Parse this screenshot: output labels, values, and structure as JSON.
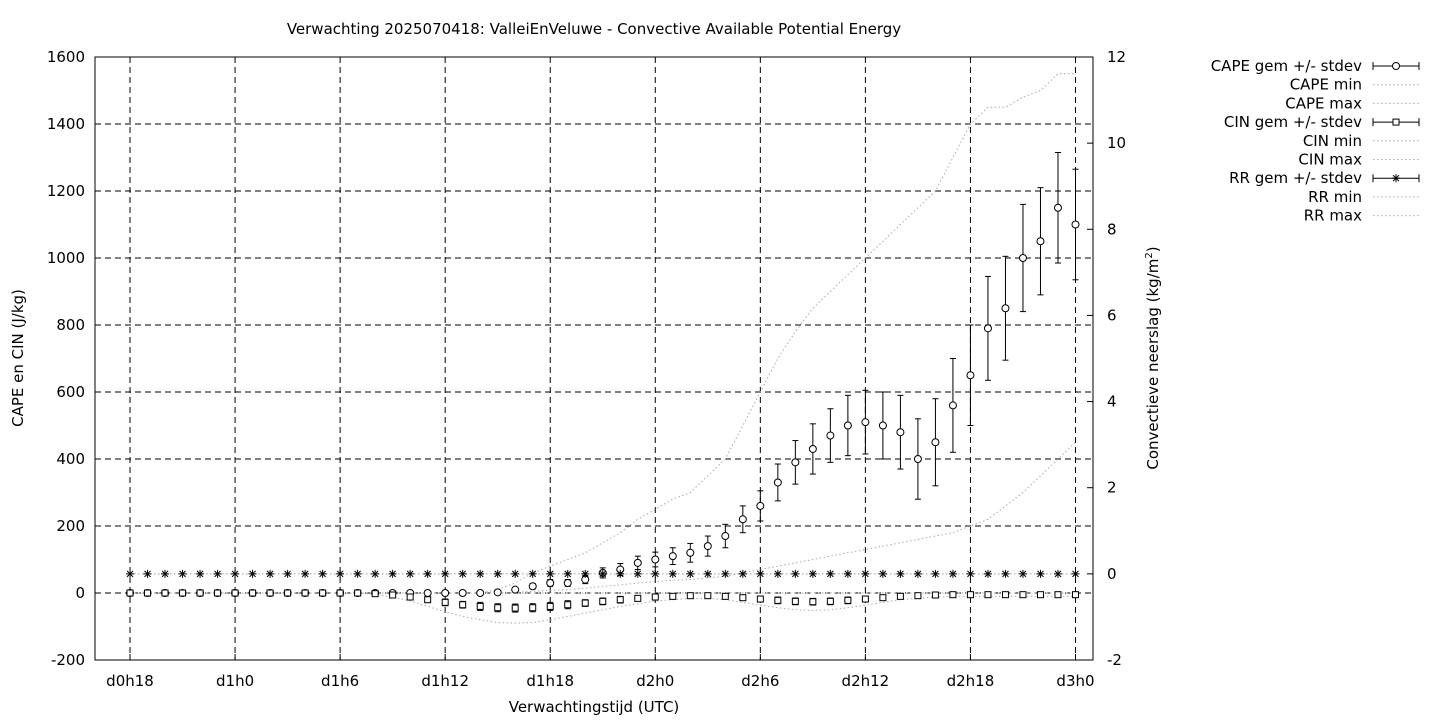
{
  "chart_data": {
    "type": "scatter",
    "title": "Verwachting 2025070418: ValleiEnVeluwe - Convective Available Potential Energy",
    "xlabel": "Verwachtingstijd (UTC)",
    "ylabel": "CAPE en CIN (J/kg)",
    "y2label": "Convectieve neerslag (kg/m",
    "y2label_sup": "2",
    "y2label_end": ")",
    "x_unit": "forecast hours since d0h18",
    "xlim": [
      -2,
      55
    ],
    "ylim": [
      -200,
      1600
    ],
    "y2lim": [
      -2,
      12
    ],
    "grid": true,
    "legend_position": "outside-right",
    "x_ticks": [
      {
        "v": 0,
        "label": "d0h18"
      },
      {
        "v": 6,
        "label": "d1h0"
      },
      {
        "v": 12,
        "label": "d1h6"
      },
      {
        "v": 18,
        "label": "d1h12"
      },
      {
        "v": 24,
        "label": "d1h18"
      },
      {
        "v": 30,
        "label": "d2h0"
      },
      {
        "v": 36,
        "label": "d2h6"
      },
      {
        "v": 42,
        "label": "d2h12"
      },
      {
        "v": 48,
        "label": "d2h18"
      },
      {
        "v": 54,
        "label": "d3h0"
      }
    ],
    "y_ticks": [
      -200,
      0,
      200,
      400,
      600,
      800,
      1000,
      1200,
      1400,
      1600
    ],
    "y2_ticks": [
      -2,
      0,
      2,
      4,
      6,
      8,
      10,
      12
    ],
    "x": [
      0,
      1,
      2,
      3,
      4,
      5,
      6,
      7,
      8,
      9,
      10,
      11,
      12,
      13,
      14,
      15,
      16,
      17,
      18,
      19,
      20,
      21,
      22,
      23,
      24,
      25,
      26,
      27,
      28,
      29,
      30,
      31,
      32,
      33,
      34,
      35,
      36,
      37,
      38,
      39,
      40,
      41,
      42,
      43,
      44,
      45,
      46,
      47,
      48,
      49,
      50,
      51,
      52,
      53,
      54
    ],
    "series": [
      {
        "name": "CAPE gem +/- stdev",
        "axis": "y",
        "marker": "circle",
        "values": [
          0,
          0,
          0,
          0,
          0,
          0,
          0,
          0,
          0,
          0,
          0,
          0,
          0,
          0,
          0,
          0,
          0,
          0,
          0,
          0,
          0,
          2,
          10,
          20,
          30,
          30,
          40,
          60,
          70,
          90,
          100,
          110,
          120,
          140,
          170,
          220,
          260,
          330,
          390,
          430,
          470,
          500,
          510,
          500,
          480,
          400,
          450,
          560,
          650,
          790,
          850,
          1000,
          1050,
          1150,
          1100
        ],
        "error": [
          0,
          0,
          0,
          0,
          0,
          0,
          0,
          0,
          0,
          0,
          0,
          0,
          0,
          0,
          0,
          0,
          0,
          0,
          0,
          0,
          0,
          2,
          5,
          8,
          10,
          10,
          12,
          15,
          18,
          20,
          22,
          25,
          28,
          30,
          35,
          40,
          45,
          55,
          65,
          75,
          80,
          90,
          95,
          100,
          110,
          120,
          130,
          140,
          150,
          155,
          155,
          160,
          160,
          165,
          165
        ]
      },
      {
        "name": "CAPE min",
        "axis": "y",
        "marker": "dots",
        "values": [
          0,
          0,
          0,
          0,
          0,
          0,
          0,
          0,
          0,
          0,
          0,
          0,
          0,
          0,
          0,
          0,
          0,
          0,
          0,
          0,
          0,
          0,
          2,
          5,
          8,
          10,
          14,
          20,
          24,
          30,
          34,
          38,
          40,
          45,
          50,
          60,
          70,
          80,
          90,
          100,
          110,
          120,
          130,
          140,
          150,
          160,
          170,
          180,
          200,
          220,
          260,
          300,
          350,
          400,
          450
        ]
      },
      {
        "name": "CAPE max",
        "axis": "y",
        "marker": "dots",
        "values": [
          0,
          0,
          0,
          0,
          0,
          0,
          0,
          0,
          0,
          0,
          0,
          0,
          0,
          0,
          0,
          0,
          0,
          0,
          0,
          0,
          0,
          10,
          30,
          60,
          80,
          100,
          120,
          150,
          180,
          220,
          250,
          280,
          300,
          350,
          400,
          500,
          600,
          700,
          780,
          850,
          900,
          950,
          1000,
          1050,
          1100,
          1150,
          1200,
          1300,
          1400,
          1450,
          1450,
          1480,
          1500,
          1550,
          1550
        ]
      },
      {
        "name": "CIN gem +/- stdev",
        "axis": "y",
        "marker": "square",
        "values": [
          0,
          0,
          0,
          0,
          0,
          0,
          0,
          0,
          0,
          0,
          0,
          0,
          0,
          0,
          -2,
          -6,
          -12,
          -20,
          -28,
          -35,
          -40,
          -44,
          -45,
          -44,
          -40,
          -35,
          -30,
          -25,
          -20,
          -16,
          -12,
          -10,
          -8,
          -8,
          -10,
          -14,
          -18,
          -22,
          -25,
          -26,
          -25,
          -22,
          -18,
          -14,
          -10,
          -8,
          -6,
          -5,
          -5,
          -5,
          -5,
          -5,
          -5,
          -5,
          -5
        ],
        "error": [
          0,
          0,
          0,
          0,
          0,
          0,
          0,
          0,
          0,
          0,
          0,
          0,
          0,
          0,
          2,
          4,
          6,
          8,
          10,
          10,
          12,
          12,
          12,
          12,
          12,
          12,
          10,
          10,
          10,
          8,
          8,
          8,
          6,
          6,
          6,
          8,
          8,
          10,
          10,
          10,
          10,
          10,
          8,
          8,
          6,
          6,
          4,
          4,
          4,
          4,
          4,
          4,
          4,
          4,
          4
        ]
      },
      {
        "name": "CIN min",
        "axis": "y",
        "marker": "dots",
        "values": [
          0,
          0,
          0,
          0,
          0,
          0,
          0,
          0,
          0,
          0,
          0,
          0,
          0,
          0,
          -4,
          -12,
          -24,
          -40,
          -56,
          -70,
          -80,
          -88,
          -90,
          -88,
          -80,
          -70,
          -60,
          -50,
          -40,
          -32,
          -24,
          -20,
          -16,
          -16,
          -20,
          -28,
          -36,
          -44,
          -50,
          -52,
          -50,
          -44,
          -36,
          -28,
          -20,
          -16,
          -12,
          -10,
          -10,
          -10,
          -10,
          -10,
          -10,
          -10,
          -10
        ]
      },
      {
        "name": "CIN max",
        "axis": "y",
        "marker": "dots",
        "values": [
          0,
          0,
          0,
          0,
          0,
          0,
          0,
          0,
          0,
          0,
          0,
          0,
          0,
          0,
          0,
          0,
          0,
          0,
          0,
          0,
          0,
          0,
          0,
          0,
          0,
          0,
          0,
          0,
          0,
          0,
          0,
          0,
          0,
          0,
          0,
          0,
          0,
          0,
          0,
          0,
          0,
          0,
          0,
          0,
          0,
          0,
          0,
          0,
          0,
          0,
          0,
          0,
          0,
          0,
          0
        ]
      },
      {
        "name": "RR gem +/- stdev",
        "axis": "y2",
        "marker": "asterisk",
        "values": [
          0,
          0,
          0,
          0,
          0,
          0,
          0,
          0,
          0,
          0,
          0,
          0,
          0,
          0,
          0,
          0,
          0,
          0,
          0,
          0,
          0,
          0,
          0,
          0,
          0,
          0,
          0,
          0,
          0,
          0,
          0,
          0,
          0,
          0,
          0,
          0,
          0,
          0,
          0,
          0,
          0,
          0,
          0,
          0,
          0,
          0,
          0,
          0,
          0,
          0,
          0,
          0,
          0,
          0,
          0
        ],
        "error": [
          0,
          0,
          0,
          0,
          0,
          0,
          0,
          0,
          0,
          0,
          0,
          0,
          0,
          0,
          0,
          0,
          0,
          0,
          0,
          0,
          0,
          0,
          0,
          0,
          0,
          0,
          0,
          0,
          0,
          0,
          0,
          0,
          0,
          0,
          0,
          0,
          0,
          0,
          0,
          0,
          0,
          0,
          0,
          0,
          0,
          0,
          0,
          0,
          0,
          0,
          0,
          0,
          0,
          0,
          0
        ]
      },
      {
        "name": "RR min",
        "axis": "y2",
        "marker": "dots",
        "values": [
          0,
          0,
          0,
          0,
          0,
          0,
          0,
          0,
          0,
          0,
          0,
          0,
          0,
          0,
          0,
          0,
          0,
          0,
          0,
          0,
          0,
          0,
          0,
          0,
          0,
          0,
          0,
          0,
          0,
          0,
          0,
          0,
          0,
          0,
          0,
          0,
          0,
          0,
          0,
          0,
          0,
          0,
          0,
          0,
          0,
          0,
          0,
          0,
          0,
          0,
          0,
          0,
          0,
          0,
          0
        ]
      },
      {
        "name": "RR max",
        "axis": "y2",
        "marker": "dots",
        "values": [
          0,
          0,
          0,
          0,
          0,
          0,
          0,
          0,
          0,
          0,
          0,
          0,
          0,
          0,
          0,
          0,
          0,
          0,
          0,
          0,
          0,
          0,
          0,
          0,
          0,
          0,
          0,
          0,
          0,
          0,
          0,
          0,
          0,
          0,
          0,
          0,
          0,
          0,
          0,
          0,
          0,
          0,
          0,
          0,
          0,
          0,
          0,
          0,
          0,
          0,
          0,
          0,
          0,
          0,
          0
        ]
      }
    ]
  }
}
